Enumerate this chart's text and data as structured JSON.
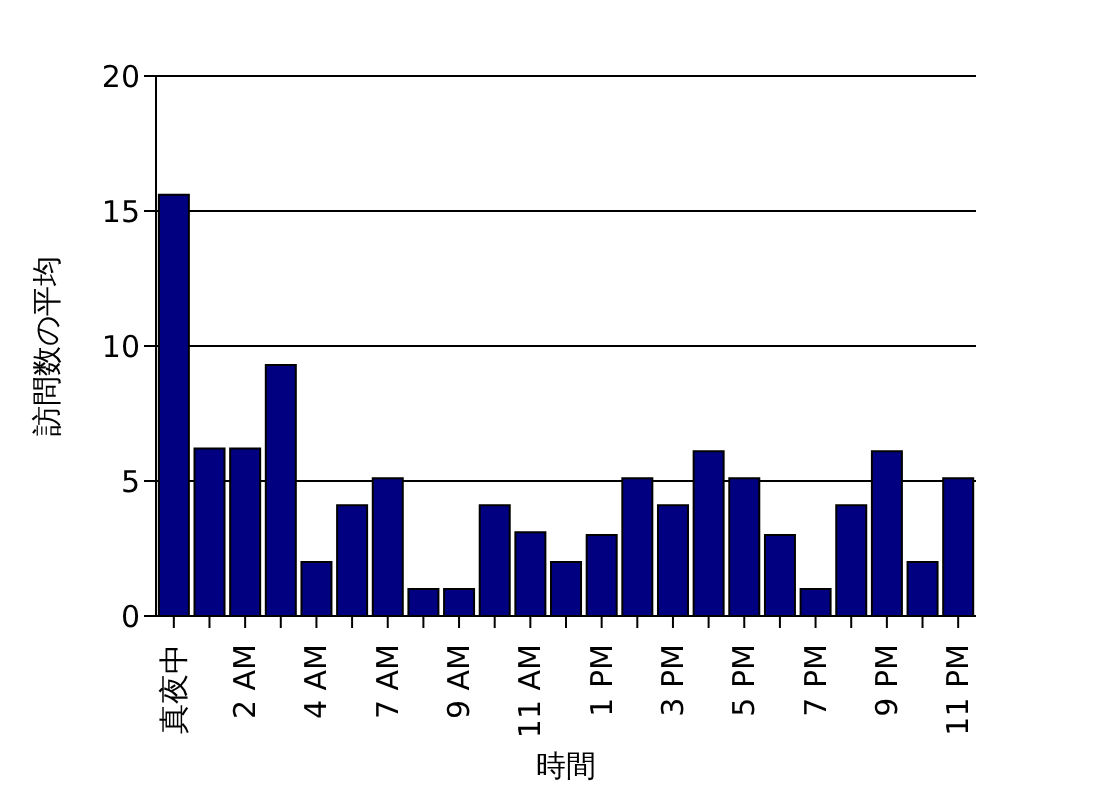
{
  "chart_data": {
    "type": "bar",
    "xlabel": "時間",
    "ylabel": "訪問数の平均",
    "categories": [
      "真夜中",
      null,
      "2 AM",
      null,
      "4 AM",
      null,
      "7 AM",
      null,
      "9 AM",
      null,
      "11 AM",
      null,
      "1 PM",
      null,
      "3 PM",
      null,
      "5 PM",
      null,
      "7 PM",
      null,
      "9 PM",
      null,
      "11 PM"
    ],
    "values": [
      15.6,
      6.2,
      6.2,
      9.3,
      2,
      4.1,
      5.1,
      1,
      1,
      4.1,
      3.1,
      2,
      3,
      5.1,
      4.1,
      6.1,
      5.1,
      3,
      1,
      4.1,
      6.1,
      2,
      5.1
    ],
    "color": "#000080",
    "ylim": [
      0,
      20
    ],
    "yticks": [
      0,
      5,
      10,
      15,
      20
    ],
    "grid": "y"
  }
}
